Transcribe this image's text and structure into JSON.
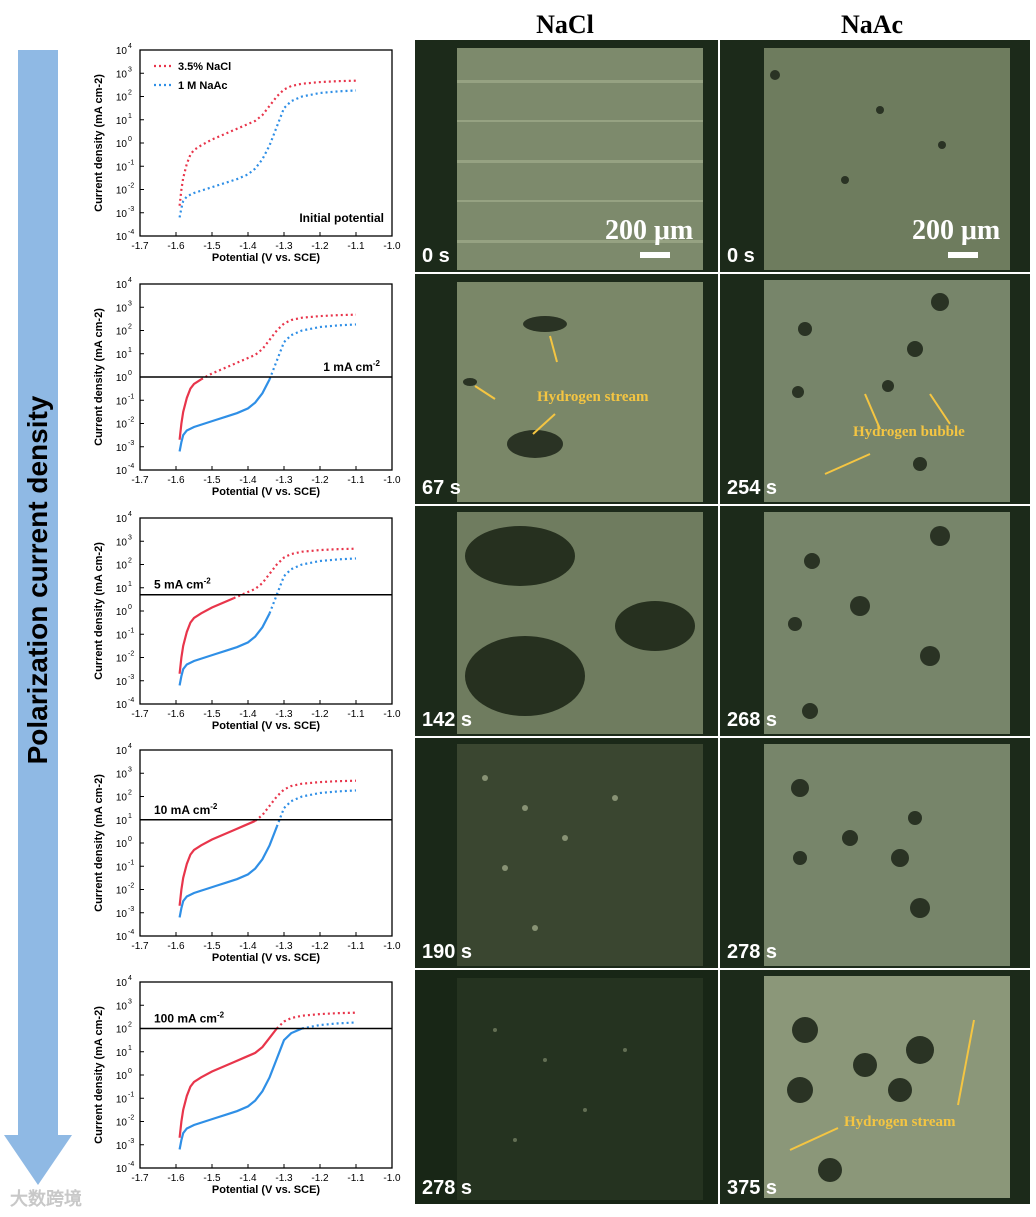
{
  "headers": {
    "nacl": "NaCl",
    "naac": "NaAc"
  },
  "side_label": "Polarization current density",
  "watermark": "大数跨境",
  "colors": {
    "nacl": "#e8354b",
    "naac": "#2f8fe6",
    "arrow": "#8fb9e4"
  },
  "chart_data": [
    {
      "type": "line",
      "xlabel": "Potential (V vs. SCE)",
      "ylabel": "Current density (mA cm-2)",
      "xlim": [
        -1.7,
        -1.0
      ],
      "ylim_exp": [
        -4,
        4
      ],
      "y_log": true,
      "legend": [
        "3.5% NaCl",
        "1 M NaAc"
      ],
      "annotation": "Initial potential",
      "hline": null,
      "style": "dotted"
    },
    {
      "type": "line",
      "xlabel": "Potential (V vs. SCE)",
      "ylabel": "Current density (mA cm-2)",
      "xlim": [
        -1.7,
        -1.0
      ],
      "ylim_exp": [
        -4,
        4
      ],
      "y_log": true,
      "annotation": "1 mA cm",
      "annotation_sup": "-2",
      "hline": 1,
      "style": "split"
    },
    {
      "type": "line",
      "xlabel": "Potential (V vs. SCE)",
      "ylabel": "Current density (mA cm-2)",
      "xlim": [
        -1.7,
        -1.0
      ],
      "ylim_exp": [
        -4,
        4
      ],
      "y_log": true,
      "annotation": "5 mA cm",
      "annotation_sup": "-2",
      "hline": 5,
      "style": "split"
    },
    {
      "type": "line",
      "xlabel": "Potential (V vs. SCE)",
      "ylabel": "Current density (mA cm-2)",
      "xlim": [
        -1.7,
        -1.0
      ],
      "ylim_exp": [
        -4,
        4
      ],
      "y_log": true,
      "annotation": "10 mA cm",
      "annotation_sup": "-2",
      "hline": 10,
      "style": "split"
    },
    {
      "type": "line",
      "xlabel": "Potential (V vs. SCE)",
      "ylabel": "Current density (mA cm-2)",
      "xlim": [
        -1.7,
        -1.0
      ],
      "ylim_exp": [
        -4,
        4
      ],
      "y_log": true,
      "annotation": "100 mA cm",
      "annotation_sup": "-2",
      "hline": 100,
      "style": "split"
    }
  ],
  "series_curves": {
    "nacl": {
      "x": [
        -1.59,
        -1.585,
        -1.58,
        -1.57,
        -1.56,
        -1.55,
        -1.53,
        -1.5,
        -1.47,
        -1.44,
        -1.41,
        -1.38,
        -1.36,
        -1.34,
        -1.32,
        -1.3,
        -1.28,
        -1.25,
        -1.2,
        -1.15,
        -1.1
      ],
      "y_exp": [
        -2.7,
        -2.0,
        -1.5,
        -0.9,
        -0.5,
        -0.3,
        -0.1,
        0.15,
        0.35,
        0.55,
        0.75,
        0.95,
        1.2,
        1.6,
        2.0,
        2.3,
        2.45,
        2.55,
        2.62,
        2.66,
        2.68
      ]
    },
    "naac": {
      "x": [
        -1.59,
        -1.585,
        -1.58,
        -1.57,
        -1.55,
        -1.52,
        -1.49,
        -1.46,
        -1.43,
        -1.4,
        -1.38,
        -1.36,
        -1.34,
        -1.32,
        -1.31,
        -1.3,
        -1.28,
        -1.25,
        -1.2,
        -1.15,
        -1.1
      ],
      "y_exp": [
        -3.2,
        -2.8,
        -2.5,
        -2.3,
        -2.15,
        -2.0,
        -1.85,
        -1.7,
        -1.55,
        -1.35,
        -1.1,
        -0.7,
        -0.1,
        0.7,
        1.1,
        1.5,
        1.8,
        2.0,
        2.15,
        2.22,
        2.26
      ]
    }
  },
  "photos": {
    "nacl": [
      {
        "time": "0 s",
        "scale": "200 μm"
      },
      {
        "time": "67 s",
        "annotation": "Hydrogen stream"
      },
      {
        "time": "142 s"
      },
      {
        "time": "190 s"
      },
      {
        "time": "278 s"
      }
    ],
    "naac": [
      {
        "time": "0 s",
        "scale": "200 μm"
      },
      {
        "time": "254 s",
        "annotation": "Hydrogen bubble"
      },
      {
        "time": "268 s"
      },
      {
        "time": "278 s"
      },
      {
        "time": "375 s",
        "annotation": "Hydrogen stream"
      }
    ]
  }
}
